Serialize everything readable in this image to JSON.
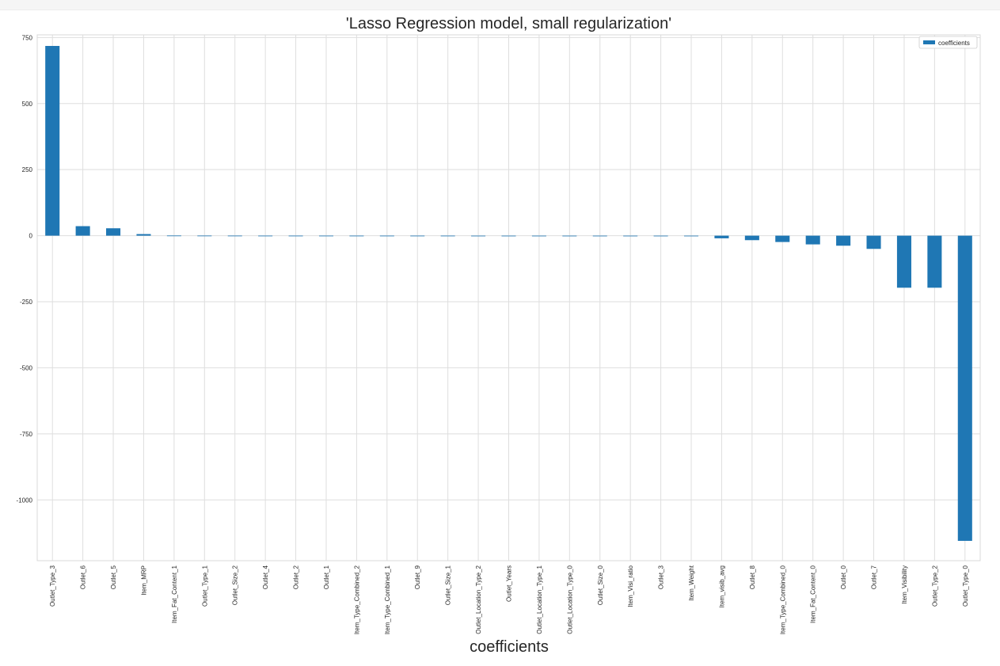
{
  "chart_data": {
    "type": "bar",
    "title": "'Lasso Regression model, small regularization'",
    "xlabel": "coefficients",
    "ylabel": "",
    "ylim": [
      -1230,
      760
    ],
    "yticks": [
      750,
      500,
      250,
      0,
      -250,
      -500,
      -750,
      -1000
    ],
    "grid": true,
    "legend_position": "top-right",
    "bar_color": "#1f77b4",
    "series": [
      {
        "name": "coefficients"
      }
    ],
    "categories": [
      "Outlet_Type_3",
      "Outlet_6",
      "Outlet_5",
      "Item_MRP",
      "Item_Fat_Content_1",
      "Outlet_Type_1",
      "Outlet_Size_2",
      "Outlet_4",
      "Outlet_2",
      "Outlet_1",
      "Item_Type_Combined_2",
      "Item_Type_Combined_1",
      "Outlet_9",
      "Outlet_Size_1",
      "Outlet_Location_Type_2",
      "Outlet_Years",
      "Outlet_Location_Type_1",
      "Outlet_Location_Type_0",
      "Outlet_Size_0",
      "Item_Visi_ratio",
      "Outlet_3",
      "Item_Weight",
      "Item_visib_avg",
      "Outlet_8",
      "Item_Type_Combined_0",
      "Item_Fat_Content_0",
      "Outlet_0",
      "Outlet_7",
      "Item_Visibility",
      "Outlet_Type_2",
      "Outlet_Type_0"
    ],
    "values": [
      718,
      36,
      28,
      6,
      0.5,
      0.3,
      0.2,
      0.1,
      0.1,
      0.1,
      0.1,
      0.1,
      0.1,
      0.1,
      0,
      0,
      0,
      -0.1,
      -0.1,
      -0.2,
      -0.3,
      -1,
      -10,
      -17,
      -24,
      -33,
      -38,
      -50,
      -197,
      -197,
      -1155
    ]
  }
}
